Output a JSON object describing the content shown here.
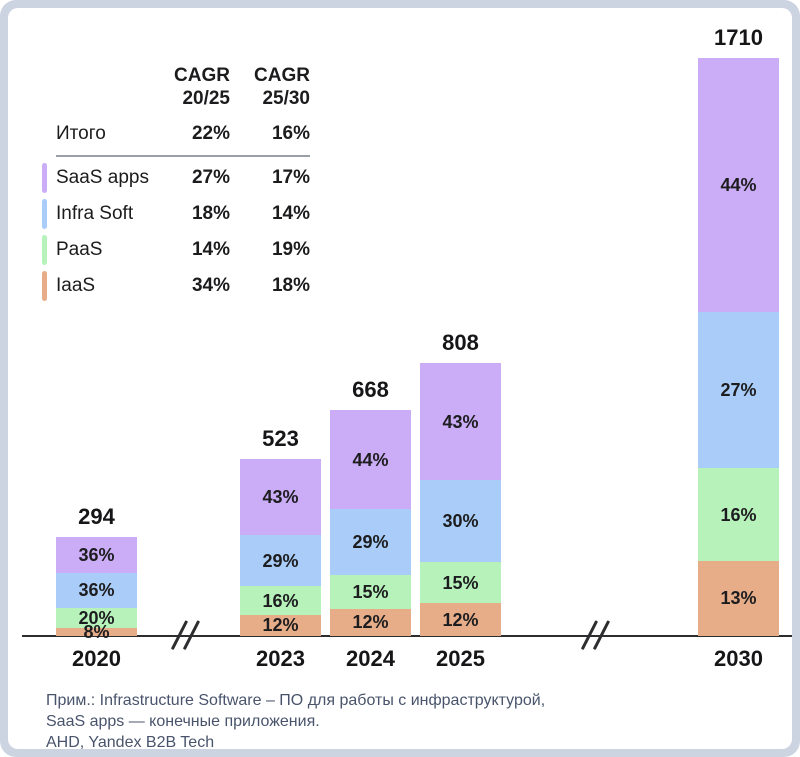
{
  "frame": {
    "border_color": "#ccd4e2",
    "card_color": "#ffffff"
  },
  "legend": {
    "col_headers": [
      {
        "line1": "CAGR",
        "line2": "20/25"
      },
      {
        "line1": "CAGR",
        "line2": "25/30"
      }
    ],
    "total_row": {
      "label": "Итого",
      "cagr_20_25": "22%",
      "cagr_25_30": "16%"
    },
    "rows": [
      {
        "key": "saas-apps",
        "label": "SaaS apps",
        "cagr_20_25": "27%",
        "cagr_25_30": "17%",
        "color": "#cbadf7"
      },
      {
        "key": "infra-soft",
        "label": "Infra Soft",
        "cagr_20_25": "18%",
        "cagr_25_30": "14%",
        "color": "#a9cdf8"
      },
      {
        "key": "paas",
        "label": "PaaS",
        "cagr_20_25": "14%",
        "cagr_25_30": "19%",
        "color": "#b7f2bb"
      },
      {
        "key": "iaas",
        "label": "IaaS",
        "cagr_20_25": "34%",
        "cagr_25_30": "18%",
        "color": "#e6ad88"
      }
    ]
  },
  "chart_data": {
    "type": "bar",
    "stacked": true,
    "categories": [
      "2020",
      "2023",
      "2024",
      "2025",
      "2030"
    ],
    "totals": [
      294,
      523,
      668,
      808,
      1710
    ],
    "series": [
      {
        "key": "saas-apps",
        "name": "SaaS apps",
        "color": "#cbadf7",
        "values_pct": [
          36,
          43,
          44,
          43,
          44
        ]
      },
      {
        "key": "infra-soft",
        "name": "Infra Soft",
        "color": "#a9cdf8",
        "values_pct": [
          36,
          29,
          29,
          30,
          27
        ]
      },
      {
        "key": "paas",
        "name": "PaaS",
        "color": "#b7f2bb",
        "values_pct": [
          20,
          16,
          15,
          15,
          16
        ]
      },
      {
        "key": "iaas",
        "name": "IaaS",
        "color": "#e6ad88",
        "values_pct": [
          8,
          12,
          12,
          12,
          13
        ]
      }
    ],
    "value_label_format": "percent",
    "axis": {
      "baseline_visible": true,
      "breaks_between": [
        [
          "2020",
          "2023"
        ],
        [
          "2025",
          "2030"
        ]
      ]
    },
    "legend_position": "top-left"
  },
  "footnote": {
    "line1": "Прим.: Infrastructure Software – ПО для работы с инфраструктурой,",
    "line2": "SaaS apps — конечные приложения.",
    "line3": "AHD, Yandex B2B Tech"
  }
}
